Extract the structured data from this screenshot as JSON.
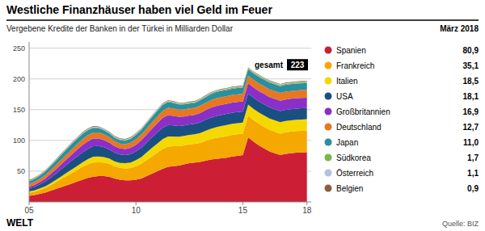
{
  "chart_data": {
    "type": "area",
    "stacked": true,
    "grid": true,
    "title": "Westliche Finanzhäuser haben viel Geld im Feuer",
    "subtitle": "Vergebene Kredite der Banken in der Türkei in Milliarden Dollar",
    "legend_title": "März 2018",
    "footer": "WELT",
    "source": "Quelle: BIZ",
    "annotations": [
      {
        "text": "gesamt",
        "label": "223",
        "value": 223
      }
    ],
    "xlim": [
      2005,
      2018.2
    ],
    "xticks": [
      {
        "value": 2005,
        "label": "05"
      },
      {
        "value": 2010,
        "label": "10"
      },
      {
        "value": 2015,
        "label": "15"
      },
      {
        "value": 2018,
        "label": "18"
      }
    ],
    "ylim": [
      0,
      260
    ],
    "yticks": [
      50,
      100,
      150,
      200,
      250
    ],
    "x": [
      2005.0,
      2005.25,
      2005.5,
      2005.75,
      2006.0,
      2006.25,
      2006.5,
      2006.75,
      2007.0,
      2007.25,
      2007.5,
      2007.75,
      2008.0,
      2008.25,
      2008.5,
      2008.75,
      2009.0,
      2009.25,
      2009.5,
      2009.75,
      2010.0,
      2010.25,
      2010.5,
      2010.75,
      2011.0,
      2011.25,
      2011.5,
      2011.75,
      2012.0,
      2012.25,
      2012.5,
      2012.75,
      2013.0,
      2013.25,
      2013.5,
      2013.75,
      2014.0,
      2014.25,
      2014.5,
      2014.75,
      2015.0,
      2015.25,
      2015.5,
      2015.75,
      2016.0,
      2016.25,
      2016.5,
      2016.75,
      2017.0,
      2017.25,
      2017.5,
      2017.75,
      2018.0
    ],
    "series": [
      {
        "name": "Spanien",
        "color": "#cc1f36",
        "legend_label": "80,9",
        "values": [
          10.0,
          11.0,
          13.0,
          15.0,
          18.0,
          21.0,
          24.0,
          27.0,
          30.0,
          33.0,
          36.0,
          39.0,
          41.0,
          42.0,
          42.0,
          41.0,
          38.0,
          36.0,
          35.0,
          35.0,
          36.0,
          38.0,
          42.0,
          46.0,
          50.0,
          54.0,
          57.0,
          58.0,
          59.0,
          61.0,
          63.0,
          64.0,
          65.0,
          67.0,
          69.0,
          70.0,
          71.0,
          72.0,
          74.0,
          75.0,
          76.0,
          105.0,
          98.0,
          92.0,
          87.0,
          82.0,
          79.0,
          76.0,
          78.0,
          79.0,
          80.0,
          80.5,
          80.9
        ]
      },
      {
        "name": "Frankreich",
        "color": "#f5a800",
        "legend_label": "35,1",
        "values": [
          5.0,
          5.5,
          6.5,
          7.5,
          9.0,
          11.0,
          13.0,
          15.0,
          17.0,
          19.0,
          21.0,
          22.0,
          23.0,
          22.5,
          22.0,
          21.0,
          20.0,
          19.5,
          19.5,
          20.0,
          22.0,
          24.0,
          26.0,
          28.0,
          30.0,
          32.0,
          33.0,
          32.5,
          31.5,
          31.0,
          30.5,
          30.5,
          31.0,
          32.0,
          33.0,
          34.0,
          34.5,
          35.0,
          35.0,
          35.0,
          35.0,
          35.1,
          35.1,
          35.1,
          35.1,
          35.1,
          35.1,
          35.1,
          35.1,
          35.1,
          35.1,
          35.1,
          35.1
        ]
      },
      {
        "name": "Italien",
        "color": "#f5d800",
        "legend_label": "18,5",
        "values": [
          2.0,
          2.2,
          2.5,
          2.8,
          3.2,
          3.8,
          4.5,
          5.2,
          5.8,
          6.5,
          7.5,
          8.5,
          9.5,
          9.5,
          9.0,
          8.5,
          8.0,
          8.0,
          8.5,
          9.0,
          10.0,
          11.0,
          12.5,
          14.0,
          15.0,
          16.0,
          16.5,
          16.0,
          15.5,
          15.5,
          15.5,
          15.5,
          16.0,
          16.5,
          17.0,
          17.5,
          18.0,
          18.0,
          18.0,
          18.0,
          18.0,
          18.2,
          18.3,
          18.4,
          18.5,
          18.5,
          18.5,
          18.5,
          18.5,
          18.5,
          18.5,
          18.5,
          18.5
        ]
      },
      {
        "name": "USA",
        "color": "#1a4f82",
        "legend_label": "18,1",
        "values": [
          5.0,
          5.5,
          6.5,
          7.5,
          9.0,
          10.0,
          11.5,
          13.0,
          14.5,
          15.5,
          16.0,
          16.5,
          17.0,
          17.0,
          16.0,
          15.0,
          14.0,
          13.5,
          13.0,
          13.5,
          14.0,
          15.0,
          16.0,
          17.0,
          18.0,
          18.5,
          18.5,
          18.0,
          17.5,
          17.0,
          17.0,
          17.0,
          17.5,
          18.0,
          18.0,
          18.0,
          18.0,
          18.0,
          18.0,
          18.0,
          18.0,
          18.1,
          18.1,
          18.1,
          18.1,
          18.1,
          18.1,
          18.1,
          18.1,
          18.1,
          18.1,
          18.1,
          18.1
        ]
      },
      {
        "name": "Großbritannien",
        "color": "#8b2fc9",
        "legend_label": "16,9",
        "values": [
          3.0,
          3.5,
          4.0,
          5.0,
          6.0,
          7.0,
          8.0,
          9.0,
          10.0,
          11.0,
          12.0,
          12.5,
          12.5,
          12.0,
          11.5,
          11.0,
          10.5,
          10.0,
          10.0,
          10.5,
          11.0,
          12.0,
          13.0,
          14.0,
          15.0,
          16.0,
          16.0,
          15.5,
          15.0,
          14.5,
          14.5,
          14.5,
          15.0,
          15.5,
          16.0,
          16.5,
          16.5,
          16.5,
          16.5,
          16.5,
          16.5,
          16.7,
          16.7,
          16.7,
          16.8,
          16.8,
          16.8,
          16.9,
          16.9,
          16.9,
          16.9,
          16.9,
          16.9
        ]
      },
      {
        "name": "Deutschland",
        "color": "#e87722",
        "legend_label": "12,7",
        "values": [
          4.5,
          4.8,
          5.2,
          5.8,
          6.2,
          6.8,
          7.5,
          8.0,
          8.5,
          9.0,
          9.5,
          10.0,
          10.0,
          10.0,
          9.5,
          9.0,
          8.5,
          8.0,
          8.0,
          8.5,
          9.0,
          9.5,
          10.0,
          10.5,
          11.0,
          11.5,
          12.0,
          12.0,
          11.5,
          11.5,
          11.5,
          11.5,
          12.0,
          12.0,
          12.5,
          12.5,
          12.5,
          12.5,
          12.5,
          12.5,
          12.5,
          12.5,
          12.5,
          12.5,
          12.5,
          12.5,
          12.6,
          12.6,
          12.7,
          12.7,
          12.7,
          12.7,
          12.7
        ]
      },
      {
        "name": "Japan",
        "color": "#2a8fa0",
        "legend_label": "11,0",
        "values": [
          4.0,
          4.5,
          5.0,
          5.5,
          6.5,
          7.0,
          7.5,
          8.0,
          8.5,
          8.5,
          8.5,
          8.0,
          7.5,
          7.0,
          6.5,
          6.0,
          5.5,
          5.5,
          5.5,
          6.0,
          7.0,
          7.5,
          8.0,
          8.5,
          9.0,
          9.5,
          9.5,
          9.0,
          8.5,
          8.0,
          8.0,
          8.0,
          8.5,
          9.0,
          9.5,
          10.0,
          10.0,
          10.0,
          10.0,
          10.0,
          10.0,
          10.0,
          10.0,
          10.5,
          10.5,
          11.0,
          11.0,
          11.0,
          11.0,
          11.0,
          11.0,
          11.0,
          11.0
        ]
      },
      {
        "name": "Südkorea",
        "color": "#7ab648",
        "legend_label": "1,7",
        "values": [
          0.5,
          0.6,
          0.6,
          0.7,
          0.7,
          0.8,
          0.8,
          0.9,
          1.0,
          1.0,
          1.0,
          1.0,
          1.0,
          0.9,
          0.9,
          0.9,
          0.9,
          1.0,
          1.0,
          1.0,
          1.0,
          1.1,
          1.1,
          1.1,
          1.2,
          1.2,
          1.2,
          1.2,
          1.2,
          1.3,
          1.3,
          1.3,
          1.3,
          1.4,
          1.4,
          1.4,
          1.4,
          1.5,
          1.5,
          1.5,
          1.5,
          1.6,
          1.6,
          1.6,
          1.6,
          1.6,
          1.6,
          1.7,
          1.7,
          1.7,
          1.7,
          1.7,
          1.7
        ]
      },
      {
        "name": "Österreich",
        "color": "#b0c4de",
        "legend_label": "1,1",
        "values": [
          0.9,
          0.9,
          0.9,
          1.0,
          1.0,
          1.0,
          1.0,
          1.1,
          1.1,
          1.1,
          1.1,
          1.1,
          1.1,
          1.0,
          1.0,
          1.0,
          1.0,
          1.0,
          1.0,
          1.0,
          1.0,
          1.0,
          1.0,
          1.0,
          1.0,
          1.0,
          1.0,
          1.0,
          1.0,
          1.0,
          1.0,
          1.0,
          1.0,
          1.0,
          1.0,
          1.0,
          1.0,
          1.0,
          1.0,
          1.0,
          1.0,
          1.0,
          1.0,
          1.0,
          1.1,
          1.1,
          1.1,
          1.1,
          1.1,
          1.1,
          1.1,
          1.1,
          1.1
        ]
      },
      {
        "name": "Belgien",
        "color": "#8B5E3C",
        "legend_label": "0,9",
        "values": [
          0.8,
          0.8,
          0.8,
          0.8,
          0.8,
          0.9,
          0.9,
          0.9,
          0.9,
          0.9,
          0.9,
          0.9,
          0.9,
          0.8,
          0.8,
          0.8,
          0.8,
          0.8,
          0.8,
          0.8,
          0.8,
          0.8,
          0.8,
          0.8,
          0.8,
          0.8,
          0.8,
          0.8,
          0.8,
          0.8,
          0.8,
          0.8,
          0.8,
          0.8,
          0.8,
          0.8,
          0.8,
          0.8,
          0.8,
          0.8,
          0.8,
          0.8,
          0.8,
          0.8,
          0.8,
          0.8,
          0.8,
          0.8,
          0.8,
          0.9,
          0.9,
          0.9,
          0.9
        ]
      }
    ]
  }
}
